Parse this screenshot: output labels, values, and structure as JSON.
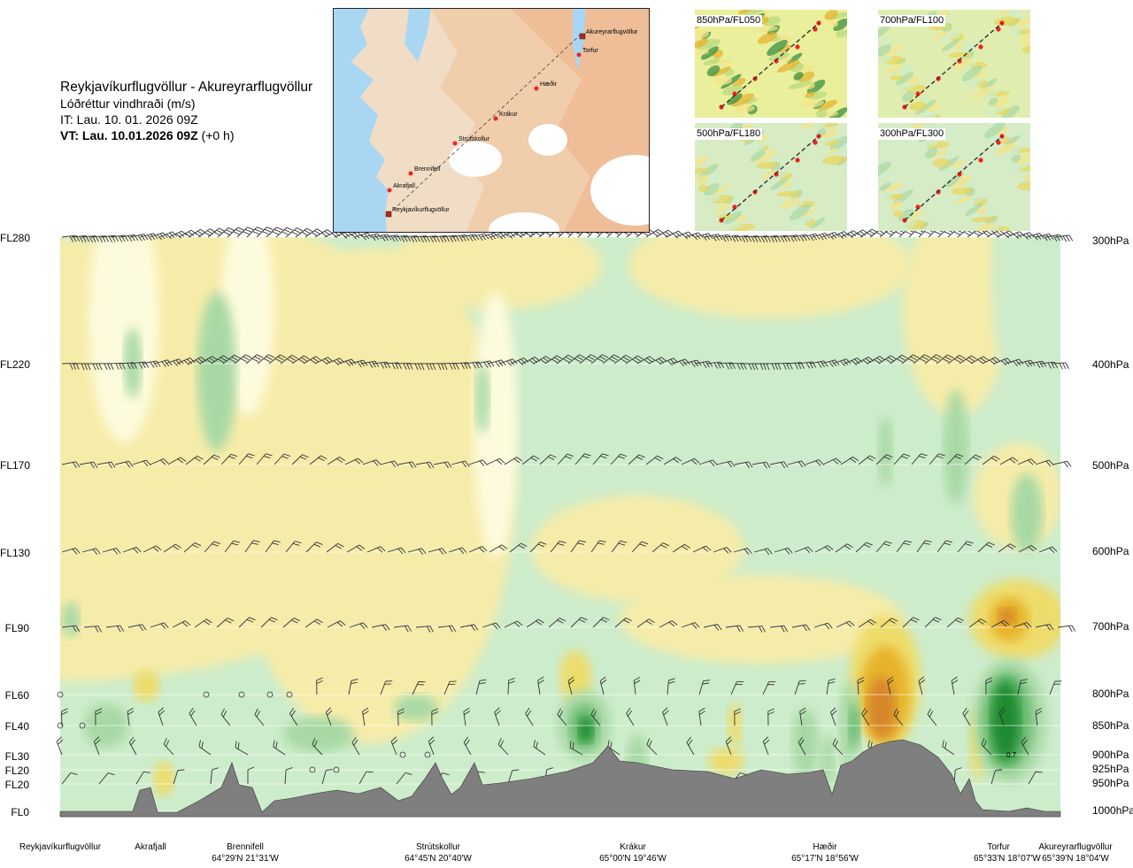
{
  "header": {
    "route": "Reykjavíkurflugvöllur - Akureyrarflugvöllur",
    "variable": "Lóðréttur vindhraði (m/s)",
    "issue_time": "IT: Lau. 10. 01. 2026 09Z",
    "valid_prefix": "VT: Lau. 10.01.2026 09Z",
    "valid_suffix": "(+0 h)"
  },
  "map": {
    "stations": [
      "Akureyrarflugvöllur",
      "Torfur",
      "Hæðir",
      "Krákur",
      "Strútskollur",
      "Brennifell",
      "Akrafjall",
      "Reykjavíkurflugvöllur"
    ]
  },
  "thumbnails": [
    "850hPa/FL050",
    "700hPa/FL100",
    "500hPa/FL180",
    "300hPa/FL300"
  ],
  "chart_data": {
    "type": "heatmap",
    "title": "Reykjavíkurflugvöllur - Akureyrarflugvöllur",
    "variable": "Lóðréttur vindhraði (m/s)",
    "left_axis": [
      "FL280",
      "FL220",
      "FL170",
      "FL130",
      "FL90",
      "FL60",
      "FL40",
      "FL30",
      "FL20",
      "FL20",
      "FL0"
    ],
    "right_axis": [
      "300hPa",
      "400hPa",
      "500hPa",
      "600hPa",
      "700hPa",
      "800hPa",
      "850hPa",
      "900hPa",
      "925hPa",
      "950hPa",
      "1000hPa"
    ],
    "pressure_levels_hpa": [
      300,
      400,
      500,
      600,
      700,
      800,
      850,
      900,
      925,
      950,
      1000
    ],
    "waypoints": [
      {
        "name": "Reykjavíkurflugvöllur",
        "coord": ""
      },
      {
        "name": "Akrafjall",
        "coord": ""
      },
      {
        "name": "Brennifell",
        "coord": "64°29'N 21°31'W"
      },
      {
        "name": "Strútskollur",
        "coord": "64°45'N 20°40'W"
      },
      {
        "name": "Krákur",
        "coord": "65°00'N 19°46'W"
      },
      {
        "name": "Hæðir",
        "coord": "65°17'N 18°56'W"
      },
      {
        "name": "Torfur",
        "coord": "65°33'N 18°07'W"
      },
      {
        "name": "Akureyrarflugvöllur",
        "coord": "65°39'N 18°04'W"
      }
    ],
    "max_label": "0.7",
    "colors": {
      "strong_down": "#1e8a2e",
      "moderate_down": "#62b86a",
      "weak_down": "#a8d9a5",
      "light_down": "#cdeccb",
      "neutral": "#fdfbdd",
      "light_up": "#f6eca9",
      "weak_up": "#eedc6b",
      "moderate_up": "#e7b32a",
      "strong_up": "#d7862a",
      "terrain": "#7f7f7f"
    }
  }
}
